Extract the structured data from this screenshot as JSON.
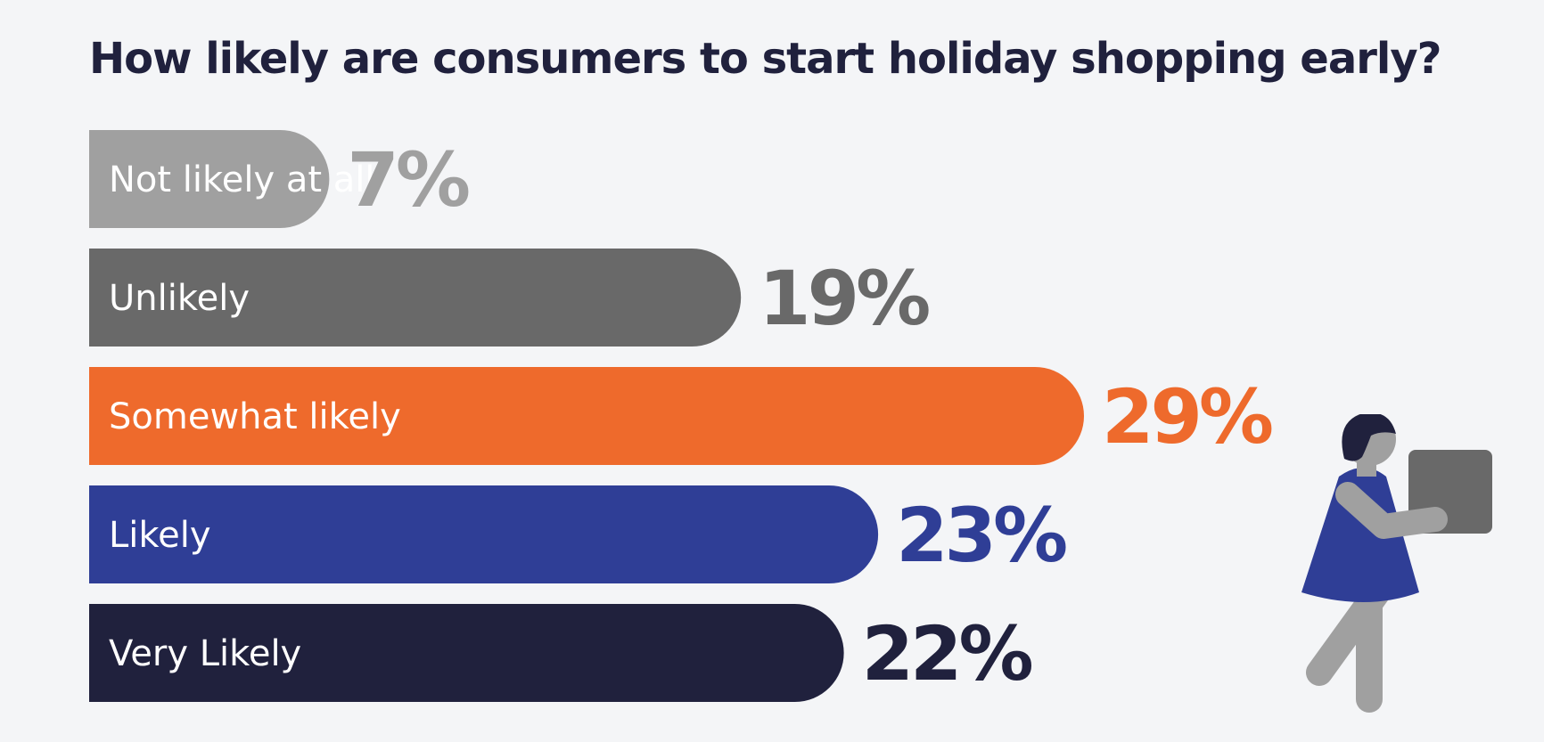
{
  "chart_data": {
    "type": "bar",
    "orientation": "horizontal",
    "title": "How likely are consumers to start holiday shopping early?",
    "unit": "%",
    "categories": [
      "Not likely at all",
      "Unlikely",
      "Somewhat likely",
      "Likely",
      "Very Likely"
    ],
    "values": [
      7,
      19,
      29,
      23,
      22
    ],
    "value_labels": [
      "7%",
      "19%",
      "29%",
      "23%",
      "22%"
    ],
    "colors": [
      "#a0a0a0",
      "#696969",
      "#ee6a2c",
      "#2f3e96",
      "#20213d"
    ],
    "label_colors": [
      "#a0a0a0",
      "#696969",
      "#ee6a2c",
      "#2f3e96",
      "#20213d"
    ],
    "xlim": [
      0,
      29
    ],
    "grid": false,
    "legend": "none"
  },
  "illustration": {
    "icon": "woman-carrying-box-icon",
    "colors": {
      "hair": "#20213d",
      "dress": "#2f3e96",
      "skin": "#a0a0a0",
      "box": "#696969"
    }
  }
}
